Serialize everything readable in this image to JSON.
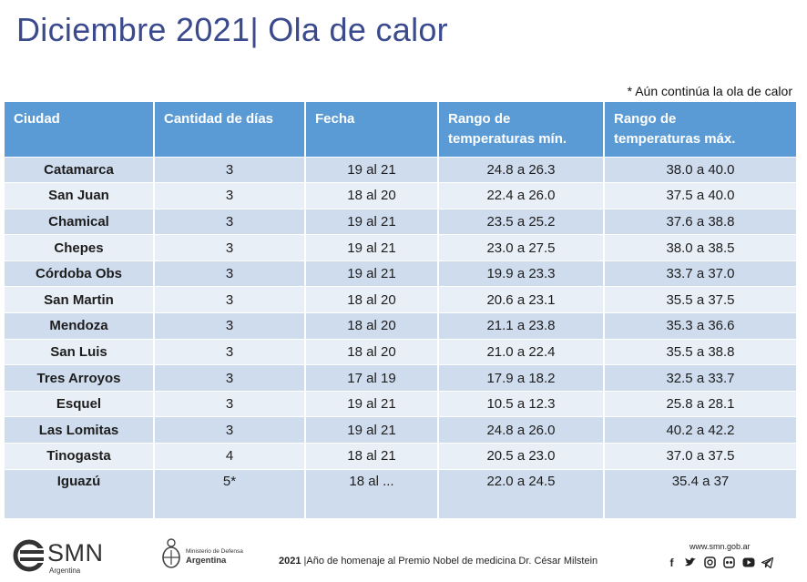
{
  "title": "Diciembre 2021| Ola de calor",
  "note": "* Aún continúa la ola de calor",
  "table": {
    "headers": {
      "ciudad": "Ciudad",
      "dias": "Cantidad de días",
      "fecha": "Fecha",
      "min_l1": "Rango de",
      "min_l2": "temperaturas mín.",
      "max_l1": "Rango de",
      "max_l2": "temperaturas máx."
    },
    "rows": [
      {
        "ciudad": "Catamarca",
        "dias": "3",
        "fecha": "19 al 21",
        "min": "24.8 a 26.3",
        "max": "38.0 a 40.0"
      },
      {
        "ciudad": "San Juan",
        "dias": "3",
        "fecha": "18 al 20",
        "min": "22.4 a 26.0",
        "max": "37.5 a 40.0"
      },
      {
        "ciudad": "Chamical",
        "dias": "3",
        "fecha": "19 al 21",
        "min": "23.5 a 25.2",
        "max": "37.6 a 38.8"
      },
      {
        "ciudad": "Chepes",
        "dias": "3",
        "fecha": "19 al 21",
        "min": "23.0 a 27.5",
        "max": "38.0 a 38.5"
      },
      {
        "ciudad": "Córdoba Obs",
        "dias": "3",
        "fecha": "19 al 21",
        "min": "19.9 a 23.3",
        "max": "33.7 a 37.0"
      },
      {
        "ciudad": "San Martin",
        "dias": "3",
        "fecha": "18 al 20",
        "min": "20.6 a 23.1",
        "max": "35.5 a 37.5"
      },
      {
        "ciudad": "Mendoza",
        "dias": "3",
        "fecha": "18 al 20",
        "min": "21.1 a 23.8",
        "max": "35.3 a 36.6"
      },
      {
        "ciudad": "San Luis",
        "dias": "3",
        "fecha": "18 al 20",
        "min": "21.0 a 22.4",
        "max": "35.5 a 38.8"
      },
      {
        "ciudad": "Tres Arroyos",
        "dias": "3",
        "fecha": "17 al 19",
        "min": "17.9 a 18.2",
        "max": "32.5 a 33.7"
      },
      {
        "ciudad": "Esquel",
        "dias": "3",
        "fecha": "19 al 21",
        "min": "10.5 a 12.3",
        "max": "25.8 a 28.1"
      },
      {
        "ciudad": "Las Lomitas",
        "dias": "3",
        "fecha": "19 al 21",
        "min": "24.8 a 26.0",
        "max": "40.2 a 42.2"
      },
      {
        "ciudad": "Tinogasta",
        "dias": "4",
        "fecha": "18 al 21",
        "min": "20.5 a 23.0",
        "max": "37.0 a 37.5"
      },
      {
        "ciudad": "Iguazú",
        "dias": "5*",
        "fecha": "18 al ...",
        "min": "22.0 a 24.5",
        "max": "35.4 a 37"
      }
    ]
  },
  "footer": {
    "smn_name": "SMN",
    "smn_sub": "Argentina",
    "ministry_l1": "Ministerio de Defensa",
    "ministry_l2": "Argentina",
    "homage_year": "2021",
    "homage_text": " |Año de homenaje al Premio Nobel de medicina Dr. César Milstein",
    "website": "www.smn.gob.ar",
    "social_icons": [
      "facebook-icon",
      "twitter-icon",
      "instagram-icon",
      "flickr-icon",
      "youtube-icon",
      "telegram-icon"
    ]
  },
  "colors": {
    "title": "#3a4a8c",
    "header_bg": "#5b9bd5",
    "row_odd": "#cfdcee",
    "row_even": "#e9eff7"
  }
}
